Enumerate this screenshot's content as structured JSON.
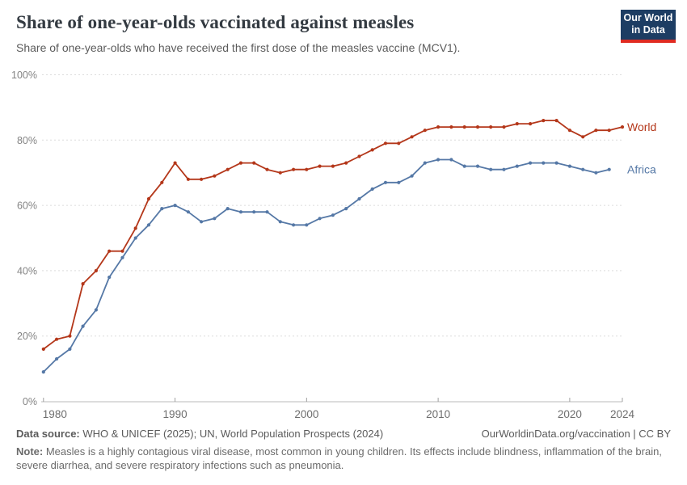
{
  "header": {
    "title": "Share of one-year-olds vaccinated against measles",
    "subtitle": "Share of one-year-olds who have received the first dose of the measles vaccine (MCV1).",
    "logo": {
      "line1": "Our World",
      "line2": "in Data",
      "bg_color": "#1d3d63",
      "accent_color": "#e02b21"
    }
  },
  "chart_data": {
    "type": "line",
    "title": "Share of one-year-olds vaccinated against measles",
    "xlabel": "",
    "ylabel": "",
    "xlim": [
      1980,
      2024
    ],
    "ylim": [
      0,
      100
    ],
    "grid": "horizontal-dashed",
    "legend_position": "line-end-labels",
    "y_ticks": [
      {
        "value": 0,
        "label": "0%"
      },
      {
        "value": 20,
        "label": "20%"
      },
      {
        "value": 40,
        "label": "40%"
      },
      {
        "value": 60,
        "label": "60%"
      },
      {
        "value": 80,
        "label": "80%"
      },
      {
        "value": 100,
        "label": "100%"
      }
    ],
    "x_ticks": [
      {
        "value": 1980,
        "label": "1980"
      },
      {
        "value": 1990,
        "label": "1990"
      },
      {
        "value": 2000,
        "label": "2000"
      },
      {
        "value": 2010,
        "label": "2010"
      },
      {
        "value": 2020,
        "label": "2020"
      },
      {
        "value": 2024,
        "label": "2024"
      }
    ],
    "series": [
      {
        "name": "World",
        "color": "#b4371a",
        "start_year": 1980,
        "values": [
          16,
          19,
          20,
          36,
          40,
          46,
          46,
          53,
          62,
          67,
          73,
          68,
          68,
          69,
          71,
          73,
          73,
          71,
          70,
          71,
          71,
          72,
          72,
          73,
          75,
          77,
          79,
          79,
          81,
          83,
          84,
          84,
          84,
          84,
          84,
          84,
          85,
          85,
          86,
          86,
          83,
          81,
          83,
          83,
          84
        ]
      },
      {
        "name": "Africa",
        "color": "#5578a6",
        "start_year": 1980,
        "values": [
          9,
          13,
          16,
          23,
          28,
          38,
          44,
          50,
          54,
          59,
          60,
          58,
          55,
          56,
          59,
          58,
          58,
          58,
          55,
          54,
          54,
          56,
          57,
          59,
          62,
          65,
          67,
          67,
          69,
          73,
          74,
          74,
          72,
          72,
          71,
          71,
          72,
          73,
          73,
          73,
          72,
          71,
          70,
          71
        ]
      }
    ]
  },
  "footer": {
    "data_source_label": "Data source:",
    "data_source_text": " WHO & UNICEF (2025); UN, World Population Prospects (2024)",
    "link_text": "OurWorldinData.org/vaccination | CC BY",
    "note_label": "Note:",
    "note_text": " Measles is a highly contagious viral disease, most common in young children. Its effects include blindness, inflammation of the brain, severe diarrhea, and severe respiratory infections such as pneumonia."
  }
}
